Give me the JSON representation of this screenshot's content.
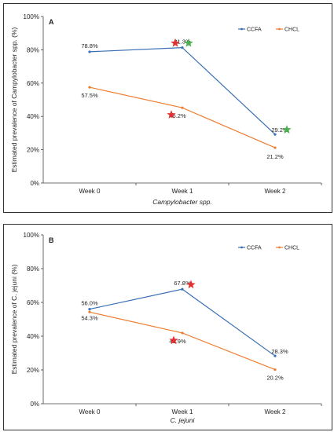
{
  "chart_data": [
    {
      "type": "line",
      "panel_letter": "A",
      "categories": [
        "Week 0",
        "Week 1",
        "Week 2"
      ],
      "ylim": [
        0,
        100
      ],
      "y_ticks": [
        "0%",
        "20%",
        "40%",
        "60%",
        "80%",
        "100%"
      ],
      "ylabel": "Estimated prevalence of Campylobacter spp. (%)",
      "xlabel": "Campylobacter spp.",
      "grid": false,
      "legend_position": "top-right",
      "series": [
        {
          "name": "CCFA",
          "color": "#3a6fb5",
          "values": [
            78.8,
            81.3,
            29.2
          ],
          "labels": [
            "78.8%",
            "81.3%",
            "29.2%"
          ]
        },
        {
          "name": "CHCL",
          "color": "#ee7d31",
          "values": [
            57.5,
            45.2,
            21.2
          ],
          "labels": [
            "57.5%",
            "45.2%",
            "21.2%"
          ]
        }
      ],
      "annotations": [
        {
          "type": "star",
          "color": "#e03030",
          "x": "Week 1",
          "y": 84
        },
        {
          "type": "star",
          "color": "#4caf50",
          "x": "Week 1",
          "y": 84
        },
        {
          "type": "star",
          "color": "#e03030",
          "x": "Week 1",
          "y": 41
        },
        {
          "type": "star",
          "color": "#4caf50",
          "x": "Week 2",
          "y": 32
        }
      ]
    },
    {
      "type": "line",
      "panel_letter": "B",
      "categories": [
        "Week 0",
        "Week 1",
        "Week 2"
      ],
      "ylim": [
        0,
        100
      ],
      "y_ticks": [
        "0%",
        "20%",
        "40%",
        "60%",
        "80%",
        "100%"
      ],
      "ylabel": "Estimated prevalence of C. jejuni (%)",
      "xlabel": "C. jejuni",
      "grid": false,
      "legend_position": "top-right",
      "series": [
        {
          "name": "CCFA",
          "color": "#3a6fb5",
          "values": [
            56.0,
            67.8,
            28.3
          ],
          "labels": [
            "56.0%",
            "67.8%",
            "28.3%"
          ]
        },
        {
          "name": "CHCL",
          "color": "#ee7d31",
          "values": [
            54.3,
            41.9,
            20.2
          ],
          "labels": [
            "54.3%",
            "41.9%",
            "20.2%"
          ]
        }
      ],
      "annotations": [
        {
          "type": "star",
          "color": "#e03030",
          "x": "Week 1",
          "y": 70.5
        },
        {
          "type": "star",
          "color": "#e03030",
          "x": "Week 1",
          "y": 37.5
        }
      ]
    }
  ]
}
